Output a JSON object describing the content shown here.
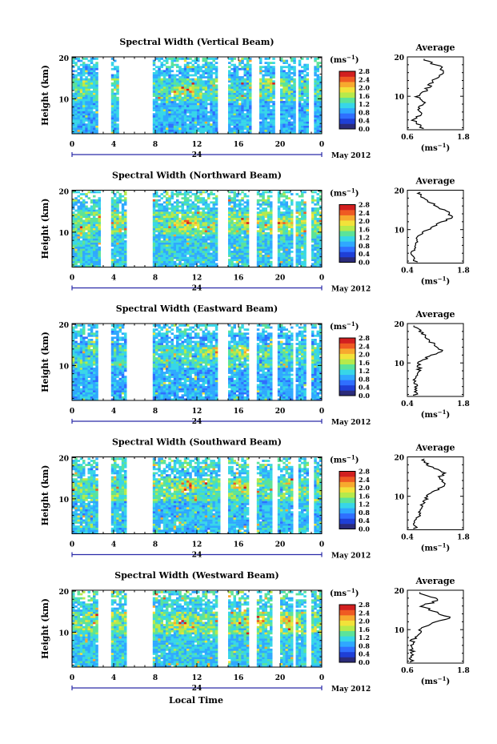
{
  "figure": {
    "date_label": "May 2012",
    "xaxis_title": "Local Time",
    "colorbar_unit": "(ms",
    "colorbar_unit_exp": "−1",
    "colorbar_unit_close": ")",
    "colorbar_ticks": [
      "0.0",
      "0.4",
      "0.8",
      "1.2",
      "1.6",
      "2.0",
      "2.4",
      "2.8"
    ],
    "average_title": "Average",
    "average_unit": "(ms",
    "average_unit_exp": "−1",
    "average_unit_close": ")"
  },
  "colors": {
    "scale": [
      "#2b2b7a",
      "#1f3fd6",
      "#2f6fff",
      "#2fa8ff",
      "#37d6e8",
      "#5be39a",
      "#b6ea4b",
      "#f2e23a",
      "#f7a92e",
      "#ef5a22",
      "#d21f1f"
    ]
  },
  "chart_data": [
    {
      "type": "heatmap",
      "title": "Spectral Width (Vertical Beam)",
      "ylabel": "Height (km)",
      "x_ticks": [
        "0",
        "4",
        "8",
        "12",
        "16",
        "20",
        "0"
      ],
      "day_label": "24",
      "y_ticks": [
        "20",
        "10"
      ],
      "xlim": [
        0,
        24
      ],
      "ylim": [
        1.5,
        20.2
      ],
      "gaps": [
        [
          2.5,
          3.6
        ],
        [
          4.5,
          7.6
        ],
        [
          13.8,
          14.8
        ],
        [
          17.2,
          17.8
        ],
        [
          19.4,
          19.9
        ],
        [
          21.3,
          21.7
        ],
        [
          22.6,
          23.2
        ]
      ],
      "intensity": 0.9,
      "hot_spots": [
        [
          10.8,
          12
        ],
        [
          19.2,
          13.5
        ]
      ],
      "average": {
        "heights": [
          2.5,
          4,
          5.5,
          7,
          8.5,
          10,
          11.5,
          13,
          14.5,
          16,
          17.5,
          19
        ],
        "values": [
          0.9,
          0.7,
          0.9,
          0.8,
          1.0,
          0.8,
          1.0,
          1.1,
          1.2,
          1.4,
          1.3,
          1.0
        ],
        "xlim": [
          0.6,
          1.8
        ],
        "x_ticks": [
          "0.6",
          "1.8"
        ],
        "y_ticks": [
          "20",
          "10"
        ]
      }
    },
    {
      "type": "heatmap",
      "title": "Spectral Width (Northward Beam)",
      "ylabel": "Height (km)",
      "x_ticks": [
        "0",
        "4",
        "8",
        "12",
        "16",
        "20",
        "0"
      ],
      "day_label": "24",
      "y_ticks": [
        "20",
        "10"
      ],
      "xlim": [
        0,
        24
      ],
      "ylim": [
        1.5,
        20.2
      ],
      "gaps": [
        [
          2.7,
          3.6
        ],
        [
          5.2,
          7.6
        ],
        [
          13.8,
          15.0
        ],
        [
          17.0,
          17.6
        ],
        [
          19.2,
          19.7
        ],
        [
          21.1,
          21.5
        ],
        [
          22.3,
          22.8
        ]
      ],
      "intensity": 1.0,
      "hot_spots": [
        [
          10.8,
          12
        ],
        [
          16.8,
          12.5
        ],
        [
          20,
          12
        ]
      ],
      "average": {
        "heights": [
          2.5,
          4,
          5.5,
          7,
          8.5,
          10,
          11.5,
          13,
          14.5,
          16,
          17.5,
          19
        ],
        "values": [
          0.6,
          0.5,
          0.6,
          0.6,
          0.7,
          0.9,
          1.2,
          1.5,
          1.4,
          1.1,
          0.9,
          0.7
        ],
        "xlim": [
          0.4,
          1.8
        ],
        "x_ticks": [
          "0.4",
          "1.8"
        ],
        "y_ticks": [
          "20",
          "10"
        ]
      }
    },
    {
      "type": "heatmap",
      "title": "Spectral Width (Eastward Beam)",
      "ylabel": "Height (km)",
      "x_ticks": [
        "0",
        "4",
        "8",
        "12",
        "16",
        "20",
        "0"
      ],
      "day_label": "24",
      "y_ticks": [
        "20",
        "10"
      ],
      "xlim": [
        0,
        24
      ],
      "ylim": [
        1.5,
        20.2
      ],
      "gaps": [
        [
          2.5,
          3.6
        ],
        [
          5.2,
          7.6
        ],
        [
          13.8,
          14.8
        ],
        [
          17.0,
          17.6
        ],
        [
          19.2,
          19.7
        ],
        [
          21.1,
          21.5
        ],
        [
          22.3,
          22.9
        ]
      ],
      "intensity": 0.85,
      "hot_spots": [
        [
          13.3,
          13
        ],
        [
          16.5,
          13
        ]
      ],
      "average": {
        "heights": [
          2.5,
          4,
          5.5,
          7,
          8.5,
          10,
          11.5,
          13,
          14.5,
          16,
          17.5,
          19
        ],
        "values": [
          0.6,
          0.6,
          0.6,
          0.6,
          0.7,
          0.7,
          0.9,
          1.3,
          1.1,
          0.9,
          0.8,
          0.6
        ],
        "xlim": [
          0.4,
          1.8
        ],
        "x_ticks": [
          "0.4",
          "1.8"
        ],
        "y_ticks": [
          "20",
          "10"
        ]
      }
    },
    {
      "type": "heatmap",
      "title": "Spectral Width (Southward Beam)",
      "ylabel": "Height (km)",
      "x_ticks": [
        "0",
        "4",
        "8",
        "12",
        "16",
        "20",
        "0"
      ],
      "day_label": "24",
      "y_ticks": [
        "20",
        "10"
      ],
      "xlim": [
        0,
        24
      ],
      "ylim": [
        1.5,
        20.2
      ],
      "gaps": [
        [
          2.5,
          3.6
        ],
        [
          5.2,
          7.6
        ],
        [
          14.2,
          15.0
        ],
        [
          17.0,
          17.6
        ],
        [
          19.2,
          19.7
        ],
        [
          21.1,
          21.6
        ],
        [
          22.7,
          23.1
        ]
      ],
      "intensity": 0.95,
      "hot_spots": [
        [
          10.8,
          12.5
        ],
        [
          16.5,
          12.5
        ]
      ],
      "average": {
        "heights": [
          2.5,
          4,
          5.5,
          7,
          8.5,
          10,
          11.5,
          13,
          14.5,
          16,
          17.5,
          19
        ],
        "values": [
          0.6,
          0.6,
          0.7,
          0.7,
          0.8,
          0.9,
          1.1,
          1.4,
          1.2,
          1.3,
          1.0,
          0.8
        ],
        "xlim": [
          0.4,
          1.8
        ],
        "x_ticks": [
          "0.4",
          "1.8"
        ],
        "y_ticks": [
          "20",
          "10"
        ]
      }
    },
    {
      "type": "heatmap",
      "title": "Spectral Width (Westward Beam)",
      "ylabel": "Height (km)",
      "x_ticks": [
        "0",
        "4",
        "8",
        "12",
        "16",
        "20",
        "0"
      ],
      "day_label": "24",
      "y_ticks": [
        "20",
        "10"
      ],
      "xlim": [
        0,
        24
      ],
      "ylim": [
        1.5,
        20.2
      ],
      "gaps": [
        [
          2.5,
          3.6
        ],
        [
          5.2,
          7.6
        ],
        [
          13.8,
          14.8
        ],
        [
          17.0,
          17.6
        ],
        [
          19.2,
          19.8
        ],
        [
          21.1,
          21.5
        ],
        [
          22.3,
          22.9
        ]
      ],
      "intensity": 1.0,
      "hot_spots": [
        [
          10.5,
          12
        ],
        [
          17.5,
          12.5
        ],
        [
          20.5,
          12.5
        ]
      ],
      "average": {
        "heights": [
          2.5,
          4,
          5.5,
          7,
          8.5,
          10,
          11.5,
          13,
          14.5,
          16,
          17.5,
          19
        ],
        "values": [
          0.7,
          0.7,
          0.7,
          0.7,
          0.8,
          0.9,
          1.1,
          1.5,
          1.2,
          0.9,
          1.3,
          0.9
        ],
        "xlim": [
          0.6,
          1.8
        ],
        "x_ticks": [
          "0.6",
          "1.8"
        ],
        "y_ticks": [
          "20",
          "10"
        ]
      }
    }
  ]
}
